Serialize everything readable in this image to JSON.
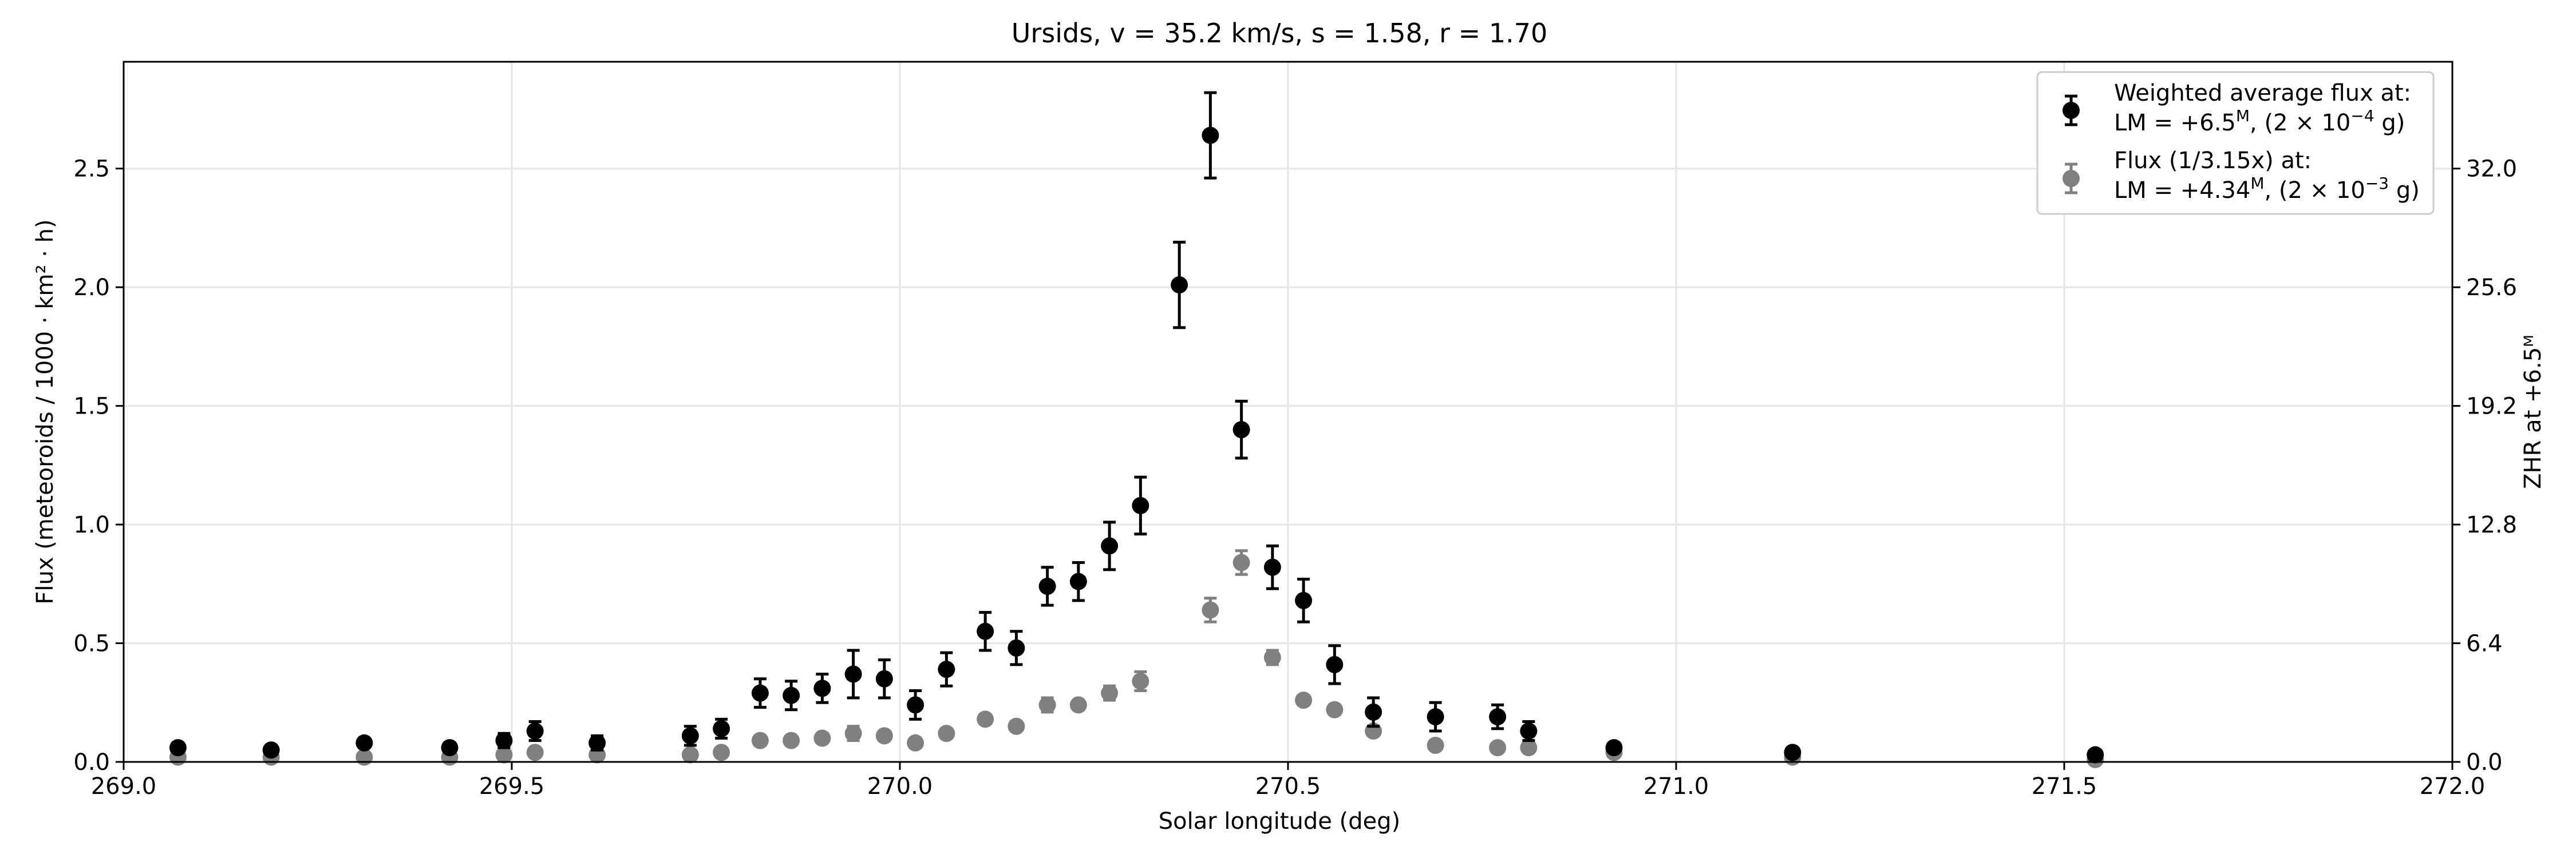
{
  "chart_data": {
    "type": "scatter",
    "title": "Ursids, v = 35.2 km/s, s = 1.58, r = 1.70",
    "xlabel": "Solar longitude (deg)",
    "ylabel": "Flux (meteoroids / 1000 · km² · h)",
    "y2label": "ZHR at +6.5ᴹ",
    "xlim": [
      269.0,
      272.0
    ],
    "ylim": [
      0,
      2.95
    ],
    "xticks": [
      269.0,
      269.5,
      270.0,
      270.5,
      271.0,
      271.5,
      272.0
    ],
    "xtick_labels": [
      "269.0",
      "269.5",
      "270.0",
      "270.5",
      "271.0",
      "271.5",
      "272.0"
    ],
    "yticks": [
      0.0,
      0.5,
      1.0,
      1.5,
      2.0,
      2.5
    ],
    "ytick_labels": [
      "0.0",
      "0.5",
      "1.0",
      "1.5",
      "2.0",
      "2.5"
    ],
    "y2_ticks_flux": [
      0.0,
      0.5,
      1.0,
      1.5,
      2.0,
      2.5
    ],
    "y2tick_labels": [
      "0.0",
      "6.4",
      "12.8",
      "19.2",
      "25.6",
      "32.0"
    ],
    "grid": true,
    "legend_position": "top-right",
    "legend": [
      {
        "line1": "Weighted average flux at:",
        "line2_pre": "LM = +6.5",
        "line2_sup": "M",
        "line2_mid": ", (2 × 10",
        "line2_exp": "−4",
        "line2_post": " g)",
        "color": "#000000"
      },
      {
        "line1": "Flux (1/3.15x) at:",
        "line2_pre": "LM = +4.34",
        "line2_sup": "M",
        "line2_mid": ", (2 × 10",
        "line2_exp": "−3",
        "line2_post": " g)",
        "color": "#808080"
      }
    ],
    "series": [
      {
        "name": "Weighted average flux at +6.5M",
        "color": "#000000",
        "x": [
          269.07,
          269.19,
          269.31,
          269.42,
          269.49,
          269.53,
          269.61,
          269.73,
          269.77,
          269.82,
          269.86,
          269.9,
          269.94,
          269.98,
          270.02,
          270.06,
          270.11,
          270.15,
          270.19,
          270.23,
          270.27,
          270.31,
          270.36,
          270.4,
          270.44,
          270.48,
          270.52,
          270.56,
          270.61,
          270.69,
          270.77,
          270.81,
          270.92,
          271.15,
          271.54
        ],
        "y": [
          0.06,
          0.05,
          0.08,
          0.06,
          0.09,
          0.13,
          0.08,
          0.11,
          0.14,
          0.29,
          0.28,
          0.31,
          0.37,
          0.35,
          0.24,
          0.39,
          0.55,
          0.48,
          0.74,
          0.76,
          0.91,
          1.08,
          2.01,
          2.64,
          1.4,
          0.82,
          0.68,
          0.41,
          0.21,
          0.19,
          0.19,
          0.13,
          0.06,
          0.04,
          0.03
        ],
        "err": [
          0.02,
          0.02,
          0.02,
          0.02,
          0.03,
          0.04,
          0.03,
          0.04,
          0.04,
          0.06,
          0.06,
          0.06,
          0.1,
          0.08,
          0.06,
          0.07,
          0.08,
          0.07,
          0.08,
          0.08,
          0.1,
          0.12,
          0.18,
          0.18,
          0.12,
          0.09,
          0.09,
          0.08,
          0.06,
          0.06,
          0.05,
          0.04,
          0.02,
          0.02,
          0.02
        ]
      },
      {
        "name": "Flux (1/3.15x) at +4.34M",
        "color": "#808080",
        "x": [
          269.07,
          269.19,
          269.31,
          269.42,
          269.49,
          269.53,
          269.61,
          269.73,
          269.77,
          269.82,
          269.86,
          269.9,
          269.94,
          269.98,
          270.02,
          270.06,
          270.11,
          270.15,
          270.19,
          270.23,
          270.27,
          270.31,
          270.4,
          270.44,
          270.48,
          270.52,
          270.56,
          270.61,
          270.69,
          270.77,
          270.81,
          270.92,
          271.15,
          271.54
        ],
        "y": [
          0.02,
          0.02,
          0.02,
          0.02,
          0.03,
          0.04,
          0.03,
          0.03,
          0.04,
          0.09,
          0.09,
          0.1,
          0.12,
          0.11,
          0.08,
          0.12,
          0.18,
          0.15,
          0.24,
          0.24,
          0.29,
          0.34,
          0.64,
          0.84,
          0.44,
          0.26,
          0.22,
          0.13,
          0.07,
          0.06,
          0.06,
          0.04,
          0.02,
          0.01
        ],
        "err": [
          0.01,
          0.01,
          0.01,
          0.01,
          0.01,
          0.01,
          0.01,
          0.01,
          0.01,
          0.02,
          0.02,
          0.02,
          0.03,
          0.02,
          0.02,
          0.02,
          0.02,
          0.02,
          0.03,
          0.02,
          0.03,
          0.04,
          0.05,
          0.05,
          0.03,
          0.02,
          0.02,
          0.02,
          0.01,
          0.01,
          0.01,
          0.01,
          0.01,
          0.01
        ]
      }
    ]
  }
}
